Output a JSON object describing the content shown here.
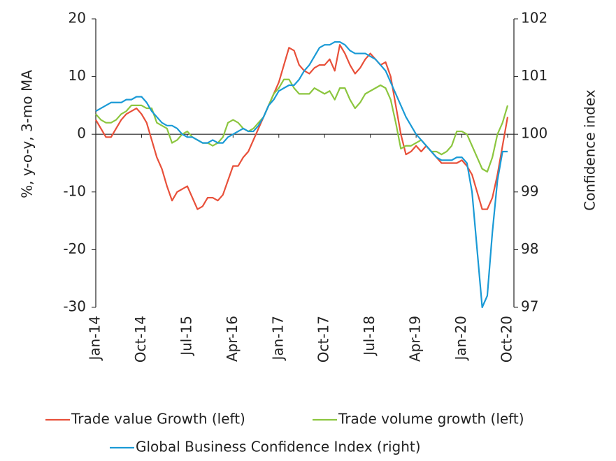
{
  "chart_data": {
    "type": "line",
    "categories": [
      "Jan-14",
      null,
      null,
      null,
      null,
      null,
      null,
      null,
      null,
      "Oct-14",
      null,
      null,
      null,
      null,
      null,
      null,
      null,
      null,
      "Jul-15",
      null,
      null,
      null,
      null,
      null,
      null,
      null,
      null,
      "Apr-16",
      null,
      null,
      null,
      null,
      null,
      null,
      null,
      null,
      "Jan-17",
      null,
      null,
      null,
      null,
      null,
      null,
      null,
      null,
      "Oct-17",
      null,
      null,
      null,
      null,
      null,
      null,
      null,
      null,
      "Jul-18",
      null,
      null,
      null,
      null,
      null,
      null,
      null,
      null,
      "Apr-19",
      null,
      null,
      null,
      null,
      null,
      null,
      null,
      null,
      "Jan-20",
      null,
      null,
      null,
      null,
      null,
      null,
      null,
      null,
      "Oct-20"
    ],
    "ylabel": "%, y-o-y, 3-mo MA",
    "y2label": "Confidence index",
    "ylim": [
      -30,
      20
    ],
    "yticks": [
      -30,
      -20,
      -10,
      0,
      10,
      20
    ],
    "y2lim": [
      97,
      102
    ],
    "y2ticks": [
      97,
      98,
      99,
      100,
      101,
      102
    ],
    "legend": "bottom",
    "series": [
      {
        "name": "Trade value Growth (left)",
        "color": "#e8503a",
        "values": [
          2.5,
          1,
          -0.5,
          -0.5,
          1,
          2.5,
          3.5,
          4,
          4.5,
          3.5,
          2,
          -1,
          -4,
          -6,
          -9,
          -11.5,
          -10,
          -9.5,
          -9,
          -11,
          -13,
          -12.5,
          -11,
          -11,
          -11.5,
          -10.5,
          -8,
          -5.5,
          -5.5,
          -4,
          -3,
          -1,
          1,
          3,
          5,
          7,
          9,
          12,
          15,
          14.5,
          12,
          11,
          10.5,
          11.5,
          12,
          12,
          13,
          11,
          15.5,
          14,
          12,
          10.5,
          11.5,
          13,
          14,
          13,
          12,
          12.5,
          10,
          5,
          0,
          -3.5,
          -3,
          -2,
          -3,
          -2,
          -3,
          -4,
          -5,
          -5,
          -5,
          -5,
          -4.5,
          -5.5,
          -7,
          -10,
          -13,
          -13,
          -11,
          -7,
          -2,
          3
        ]
      },
      {
        "name": "Trade volume growth (left)",
        "color": "#8cc63f",
        "values": [
          3.5,
          2.5,
          2,
          2,
          2.5,
          3.5,
          4,
          5,
          5,
          5,
          4.5,
          4.5,
          2,
          1.5,
          1,
          -1.5,
          -1,
          0,
          0.5,
          -0.5,
          -1,
          -1.5,
          -1.5,
          -2,
          -1.5,
          -0.5,
          2,
          2.5,
          2,
          1,
          0.5,
          1,
          2,
          3,
          5,
          7,
          8,
          9.5,
          9.5,
          8,
          7,
          7,
          7,
          8,
          7.5,
          7,
          7.5,
          6,
          8,
          8,
          6,
          4.5,
          5.5,
          7,
          7.5,
          8,
          8.5,
          8,
          6,
          2,
          -2.5,
          -2,
          -2,
          -1.5,
          -1,
          -2,
          -3,
          -3,
          -3.5,
          -3,
          -2,
          0.5,
          0.5,
          0,
          -2,
          -4,
          -6,
          -6.5,
          -4,
          0,
          2,
          5
        ]
      },
      {
        "name": "Global Business Confidence Index (right)",
        "color": "#1a9ad6",
        "axis": "y2",
        "values": [
          100.4,
          100.45,
          100.5,
          100.55,
          100.55,
          100.55,
          100.6,
          100.6,
          100.65,
          100.65,
          100.55,
          100.4,
          100.3,
          100.2,
          100.15,
          100.15,
          100.1,
          100.0,
          99.95,
          99.95,
          99.9,
          99.85,
          99.85,
          99.9,
          99.85,
          99.85,
          99.95,
          100.0,
          100.05,
          100.1,
          100.05,
          100.05,
          100.15,
          100.3,
          100.5,
          100.6,
          100.75,
          100.8,
          100.85,
          100.85,
          100.95,
          101.1,
          101.2,
          101.35,
          101.5,
          101.55,
          101.55,
          101.6,
          101.6,
          101.55,
          101.45,
          101.4,
          101.4,
          101.4,
          101.35,
          101.3,
          101.2,
          101.1,
          100.9,
          100.7,
          100.5,
          100.3,
          100.15,
          100.0,
          99.9,
          99.8,
          99.7,
          99.6,
          99.55,
          99.55,
          99.55,
          99.6,
          99.6,
          99.5,
          99.0,
          98.0,
          97.0,
          97.2,
          98.3,
          99.2,
          99.7,
          99.7
        ]
      }
    ]
  }
}
